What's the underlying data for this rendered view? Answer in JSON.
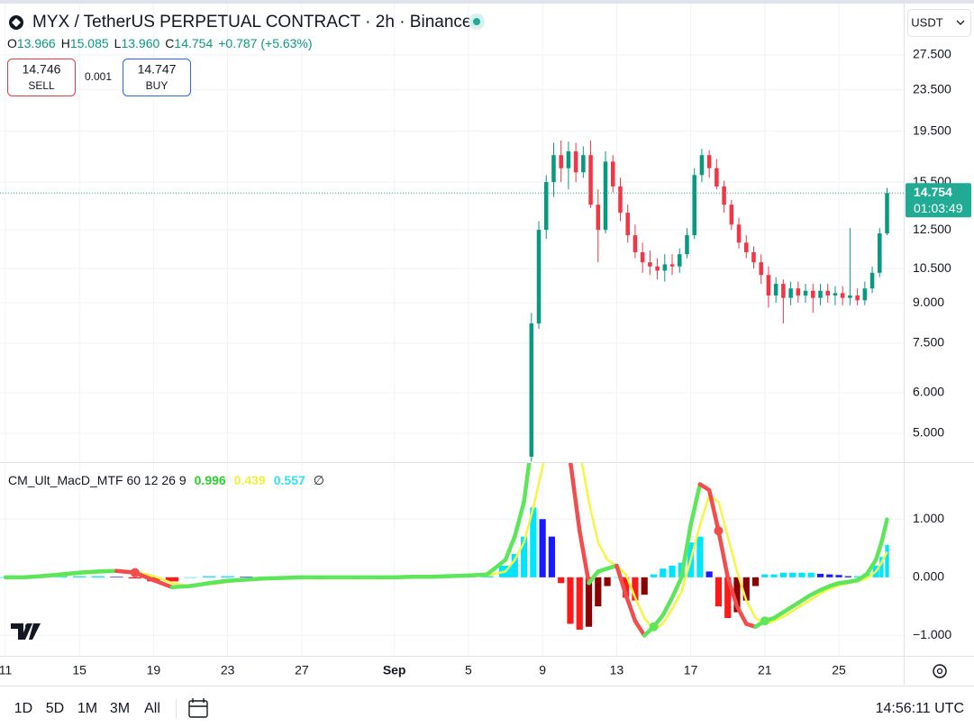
{
  "header": {
    "symbol": "MYX / TetherUS PERPETUAL CONTRACT · 2h · Binance",
    "ohlc_labels": [
      "O",
      "H",
      "L",
      "C"
    ],
    "ohlc_values": [
      "13.966",
      "15.085",
      "13.960",
      "14.754"
    ],
    "change": "+0.787 (+5.63%)",
    "sell_price": "14.746",
    "sell_label": "SELL",
    "spread": "0.001",
    "buy_price": "14.747",
    "buy_label": "BUY",
    "currency": "USDT"
  },
  "chart_data": [
    {
      "type": "candlestick",
      "log_scale": true,
      "grid": true,
      "up_color": "#089981",
      "down_color": "#f23645",
      "last_price": 14.754,
      "last_price_color": "#22ab94",
      "countdown": "01:03:49",
      "xlim": [
        -0.29,
        48.5
      ],
      "xticks": [
        {
          "value": 0,
          "label": "11"
        },
        {
          "value": 4,
          "label": "15"
        },
        {
          "value": 8,
          "label": "19"
        },
        {
          "value": 12,
          "label": "23"
        },
        {
          "value": 16,
          "label": "27"
        },
        {
          "value": 21,
          "label": "Sep"
        },
        {
          "value": 25,
          "label": "5"
        },
        {
          "value": 29,
          "label": "9"
        },
        {
          "value": 33,
          "label": "13"
        },
        {
          "value": 37,
          "label": "17"
        },
        {
          "value": 41,
          "label": "21"
        },
        {
          "value": 45,
          "label": "25"
        }
      ],
      "ylim": [
        4.39,
        35.2
      ],
      "yticks": [
        {
          "value": 27.5,
          "label": "27.500"
        },
        {
          "value": 23.5,
          "label": "23.500"
        },
        {
          "value": 19.5,
          "label": "19.500"
        },
        {
          "value": 15.5,
          "label": "15.500"
        },
        {
          "value": 12.5,
          "label": "12.500"
        },
        {
          "value": 10.5,
          "label": "10.500"
        },
        {
          "value": 9,
          "label": "9.000"
        },
        {
          "value": 7.5,
          "label": "7.500"
        },
        {
          "value": 6,
          "label": "6.000"
        },
        {
          "value": 5,
          "label": "5.000"
        }
      ],
      "x": [
        28.4,
        28.8,
        29.2,
        29.6,
        30,
        30.4,
        30.8,
        31.2,
        31.6,
        32,
        32.4,
        32.8,
        33.2,
        33.6,
        34,
        34.4,
        34.8,
        35.2,
        35.6,
        36,
        36.4,
        36.8,
        37.2,
        37.6,
        38,
        38.4,
        38.8,
        39.2,
        39.6,
        40,
        40.4,
        40.8,
        41.2,
        41.6,
        42,
        42.4,
        42.8,
        43.2,
        43.6,
        44,
        44.4,
        44.8,
        45.2,
        45.6,
        46,
        46.4,
        46.8,
        47.2,
        47.6
      ],
      "open": [
        4.5,
        8.2,
        12.5,
        15.5,
        17.5,
        16.5,
        17.8,
        16.2,
        17.5,
        14,
        12.5,
        17,
        15.2,
        13.5,
        12.2,
        11.3,
        10.8,
        10.6,
        10.4,
        10.7,
        10.6,
        11.2,
        12.2,
        16,
        17.5,
        16.5,
        15.2,
        14,
        12.8,
        11.8,
        11.3,
        10.8,
        10.2,
        9.3,
        9.8,
        9.2,
        9.6,
        9.3,
        9.5,
        9.2,
        9.5,
        9.3,
        9.4,
        9.2,
        9.3,
        9.1,
        9.6,
        10.3,
        12.3
      ],
      "high": [
        8.6,
        13,
        16,
        18.5,
        18.7,
        18.6,
        18.5,
        18.2,
        18.7,
        15,
        17.8,
        17.5,
        15.8,
        14,
        12.8,
        11.8,
        11.4,
        11,
        11.2,
        11.2,
        11.5,
        12.6,
        16.5,
        18,
        17.9,
        17.2,
        15.6,
        14.3,
        13.2,
        12.2,
        11.6,
        11.2,
        10.6,
        10.1,
        10,
        9.9,
        9.9,
        9.8,
        9.8,
        9.8,
        9.8,
        9.7,
        9.7,
        12.6,
        9.6,
        9.9,
        10.6,
        12.6,
        15.1
      ],
      "low": [
        4.4,
        8,
        12,
        14.5,
        15.5,
        15,
        15.5,
        15.8,
        13.8,
        10.8,
        12.3,
        14.8,
        13,
        11.8,
        11,
        10.3,
        10.2,
        10,
        9.9,
        10.2,
        10.3,
        11,
        12,
        15.5,
        15.8,
        15,
        13.5,
        12.5,
        11.5,
        11,
        10.5,
        9.8,
        8.8,
        9,
        8.2,
        8.9,
        9,
        9,
        8.6,
        8.9,
        9,
        8.9,
        8.9,
        8.9,
        8.9,
        8.9,
        9.4,
        10.1,
        12.2
      ],
      "close": [
        8.2,
        12.5,
        15.5,
        17.5,
        16.5,
        17.8,
        16.2,
        17.5,
        14,
        12.5,
        17,
        15.2,
        13.5,
        12.2,
        11.3,
        10.8,
        10.6,
        10.4,
        10.7,
        10.6,
        11.2,
        12.2,
        16,
        17.5,
        16.5,
        15.2,
        14,
        12.8,
        11.8,
        11.3,
        10.8,
        10.2,
        9.3,
        9.8,
        9.2,
        9.6,
        9.3,
        9.5,
        9.2,
        9.5,
        9.3,
        9.4,
        9.2,
        9.3,
        9.1,
        9.6,
        10.3,
        12.3,
        14.754
      ]
    },
    {
      "type": "macd",
      "title": "CM_Ult_MacD_MTF 60 12 26 9",
      "empty_symbol": "∅",
      "grid": true,
      "colors": {
        "macd_up": "#5ee65a",
        "macd_down": "#f24c4c",
        "signal": "#f5f542",
        "hist_up_rising": "#00e5ff",
        "hist_up_falling": "#1a1aff",
        "hist_down_falling": "#ff1a1a",
        "hist_down_rising": "#8b0000"
      },
      "xlim": [
        -0.29,
        48.5
      ],
      "ylim": [
        -1.35,
        1.98
      ],
      "yticks": [
        {
          "value": 1,
          "label": "1.000"
        },
        {
          "value": 0,
          "label": "0.000"
        },
        {
          "value": -1,
          "label": "−1.000"
        }
      ],
      "x": [
        0,
        1,
        2,
        3,
        4,
        5,
        6,
        7,
        8,
        9,
        10,
        11,
        12,
        13,
        14,
        15,
        16,
        17,
        18,
        19,
        20,
        21,
        22,
        23,
        24,
        25,
        26,
        27,
        27.5,
        28,
        28.5,
        29,
        29.5,
        30,
        30.5,
        31,
        31.5,
        32,
        32.5,
        33,
        33.5,
        34,
        34.5,
        35,
        35.5,
        36,
        36.5,
        37,
        37.5,
        38,
        38.5,
        39,
        39.5,
        40,
        40.5,
        41,
        41.5,
        42,
        42.5,
        43,
        43.5,
        44,
        44.5,
        45,
        45.5,
        46,
        46.5,
        47,
        47.3,
        47.6
      ],
      "macd": [
        0,
        0,
        0.02,
        0.05,
        0.08,
        0.1,
        0.11,
        0.08,
        -0.05,
        -0.17,
        -0.15,
        -0.1,
        -0.06,
        -0.04,
        -0.02,
        -0.01,
        0,
        0,
        0,
        0,
        0,
        0,
        0.01,
        0.01,
        0.02,
        0.03,
        0.05,
        0.3,
        0.7,
        1.3,
        2.5,
        3.0,
        3.2,
        2.8,
        2.0,
        0.8,
        -0.1,
        0.1,
        0.15,
        0.2,
        -0.3,
        -0.75,
        -1.0,
        -0.85,
        -0.65,
        -0.35,
        0.0,
        0.9,
        1.6,
        1.5,
        0.8,
        0.0,
        -0.5,
        -0.8,
        -0.85,
        -0.75,
        -0.7,
        -0.6,
        -0.5,
        -0.4,
        -0.3,
        -0.22,
        -0.15,
        -0.1,
        -0.08,
        -0.05,
        0.05,
        0.3,
        0.6,
        0.996
      ],
      "signal": [
        0,
        0,
        0.01,
        0.03,
        0.06,
        0.08,
        0.1,
        0.1,
        0.02,
        -0.1,
        -0.15,
        -0.12,
        -0.08,
        -0.05,
        -0.03,
        -0.02,
        -0.01,
        0,
        0,
        0,
        0,
        0,
        0,
        0.01,
        0.01,
        0.02,
        0.03,
        0.1,
        0.3,
        0.6,
        1.2,
        1.9,
        2.5,
        2.9,
        2.8,
        2.2,
        1.3,
        0.6,
        0.3,
        0.2,
        0.05,
        -0.35,
        -0.7,
        -0.9,
        -0.8,
        -0.55,
        -0.25,
        0.3,
        0.9,
        1.4,
        1.3,
        0.7,
        0.1,
        -0.4,
        -0.7,
        -0.8,
        -0.75,
        -0.68,
        -0.58,
        -0.48,
        -0.38,
        -0.28,
        -0.2,
        -0.14,
        -0.1,
        -0.07,
        -0.02,
        0.1,
        0.25,
        0.439
      ],
      "hist": [
        0,
        0,
        0.01,
        0.02,
        0.02,
        0.02,
        0.01,
        -0.02,
        -0.07,
        -0.07,
        0,
        0.02,
        0.02,
        0.01,
        0.01,
        0.01,
        0.01,
        0,
        0,
        0,
        0,
        0,
        0.01,
        0,
        0.01,
        0.01,
        0.02,
        0.2,
        0.4,
        0.7,
        1.2,
        1.0,
        0.7,
        -0.1,
        -0.8,
        -0.9,
        -0.85,
        -0.5,
        -0.15,
        0,
        -0.35,
        -0.4,
        -0.3,
        0.05,
        0.15,
        0.2,
        0.25,
        0.6,
        0.7,
        0.1,
        -0.5,
        -0.7,
        -0.6,
        -0.4,
        -0.15,
        0.05,
        0.05,
        0.08,
        0.08,
        0.08,
        0.08,
        0.06,
        0.05,
        0.04,
        0.02,
        0.02,
        0.07,
        0.2,
        0.35,
        0.557
      ]
    }
  ],
  "toolbar": {
    "ranges": [
      "1D",
      "5D",
      "1M",
      "3M",
      "All"
    ],
    "clock": "14:56:11 UTC"
  }
}
